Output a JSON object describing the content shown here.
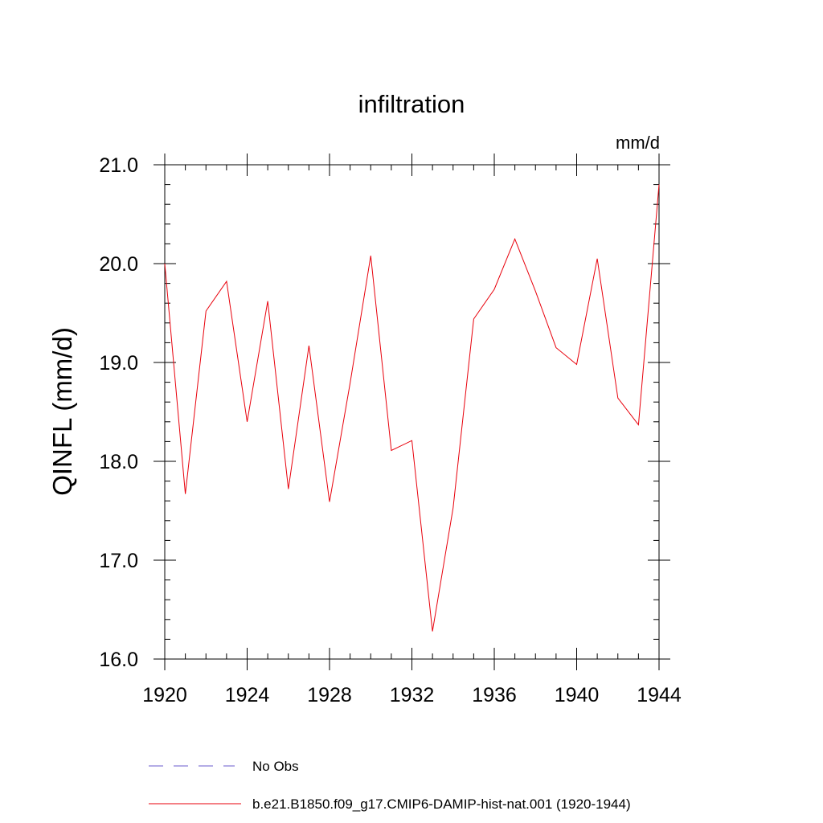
{
  "chart_data": {
    "type": "line",
    "title": "infiltration",
    "units_label": "mm/d",
    "ylabel": "QINFL  (mm/d)",
    "xlabel": "",
    "xlim": [
      1920,
      1944
    ],
    "ylim": [
      16.0,
      21.0
    ],
    "x_ticks": [
      1920,
      1924,
      1928,
      1932,
      1936,
      1940,
      1944
    ],
    "x_tick_labels": [
      "1920",
      "1924",
      "1928",
      "1932",
      "1936",
      "1940",
      "1944"
    ],
    "y_ticks": [
      16.0,
      17.0,
      18.0,
      19.0,
      20.0,
      21.0
    ],
    "y_tick_labels": [
      "16.0",
      "17.0",
      "18.0",
      "19.0",
      "20.0",
      "21.0"
    ],
    "grid": false,
    "legend_position": "bottom",
    "legend": [
      {
        "label": "No Obs",
        "style": "dashed",
        "color": "#6a5acd"
      },
      {
        "label": "b.e21.B1850.f09_g17.CMIP6-DAMIP-hist-nat.001 (1920-1944)",
        "style": "solid",
        "color": "#e8000b"
      }
    ],
    "series": [
      {
        "name": "b.e21.B1850.f09_g17.CMIP6-DAMIP-hist-nat.001 (1920-1944)",
        "color": "#e8000b",
        "x": [
          1920,
          1921,
          1922,
          1923,
          1924,
          1925,
          1926,
          1927,
          1928,
          1929,
          1930,
          1931,
          1932,
          1933,
          1934,
          1935,
          1936,
          1937,
          1938,
          1939,
          1940,
          1941,
          1942,
          1943,
          1944
        ],
        "y": [
          20.0,
          17.67,
          19.52,
          19.82,
          18.4,
          19.62,
          17.72,
          19.17,
          17.59,
          18.79,
          20.08,
          18.11,
          18.21,
          16.28,
          17.53,
          19.44,
          19.74,
          20.25,
          19.72,
          19.15,
          18.98,
          20.05,
          18.64,
          18.37,
          20.8
        ]
      }
    ]
  }
}
